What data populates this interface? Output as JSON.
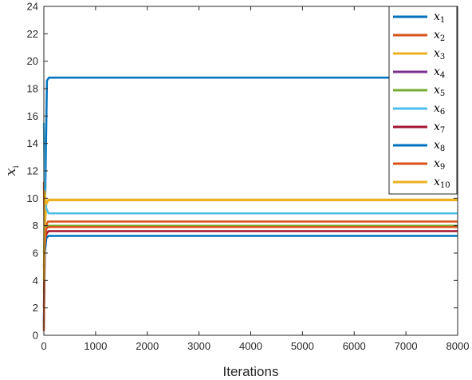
{
  "chart_data": {
    "type": "line",
    "title": "",
    "xlabel": "Iterations",
    "ylabel": "x",
    "ylabel_sub": "i",
    "xlim": [
      0,
      8000
    ],
    "ylim": [
      0,
      24
    ],
    "xticks": [
      0,
      1000,
      2000,
      3000,
      4000,
      5000,
      6000,
      7000,
      8000
    ],
    "yticks": [
      0,
      2,
      4,
      6,
      8,
      10,
      12,
      14,
      16,
      18,
      20,
      22,
      24
    ],
    "grid": false,
    "legend_position": "top-right",
    "series": [
      {
        "name": "x",
        "sub": "1",
        "color": "#0072BD",
        "x": [
          0,
          20,
          60,
          100,
          8000
        ],
        "y": [
          0.5,
          8.5,
          18.6,
          18.8,
          18.8
        ]
      },
      {
        "name": "x",
        "sub": "2",
        "color": "#D95319",
        "x": [
          0,
          15,
          40,
          80,
          8000
        ],
        "y": [
          11.2,
          6.5,
          8.0,
          8.3,
          8.3
        ]
      },
      {
        "name": "x",
        "sub": "3",
        "color": "#EDB120",
        "x": [
          0,
          20,
          50,
          90,
          8000
        ],
        "y": [
          3.0,
          8.0,
          9.6,
          9.9,
          9.9
        ]
      },
      {
        "name": "x",
        "sub": "4",
        "color": "#7E2F8E",
        "x": [
          0,
          20,
          50,
          90,
          8000
        ],
        "y": [
          5.0,
          7.0,
          7.8,
          8.0,
          8.0
        ]
      },
      {
        "name": "x",
        "sub": "5",
        "color": "#77AC30",
        "x": [
          0,
          20,
          50,
          90,
          8000
        ],
        "y": [
          6.0,
          7.5,
          7.9,
          8.0,
          8.0
        ]
      },
      {
        "name": "x",
        "sub": "6",
        "color": "#4DBEEE",
        "x": [
          0,
          15,
          45,
          90,
          8000
        ],
        "y": [
          15.5,
          10.5,
          9.3,
          8.9,
          8.9
        ]
      },
      {
        "name": "x",
        "sub": "7",
        "color": "#A2142F",
        "x": [
          0,
          20,
          50,
          90,
          8000
        ],
        "y": [
          2.0,
          6.5,
          7.4,
          7.6,
          7.6
        ]
      },
      {
        "name": "x",
        "sub": "8",
        "color": "#0072BD",
        "x": [
          0,
          20,
          50,
          90,
          8000
        ],
        "y": [
          1.0,
          6.0,
          7.1,
          7.25,
          7.25
        ]
      },
      {
        "name": "x",
        "sub": "9",
        "color": "#D95319",
        "x": [
          0,
          15,
          45,
          90,
          8000
        ],
        "y": [
          0.3,
          6.5,
          7.8,
          7.9,
          7.9
        ]
      },
      {
        "name": "x",
        "sub": "10",
        "color": "#EDB120",
        "x": [
          0,
          15,
          45,
          90,
          8000
        ],
        "y": [
          4.0,
          10.5,
          9.6,
          9.85,
          9.85
        ]
      }
    ]
  }
}
